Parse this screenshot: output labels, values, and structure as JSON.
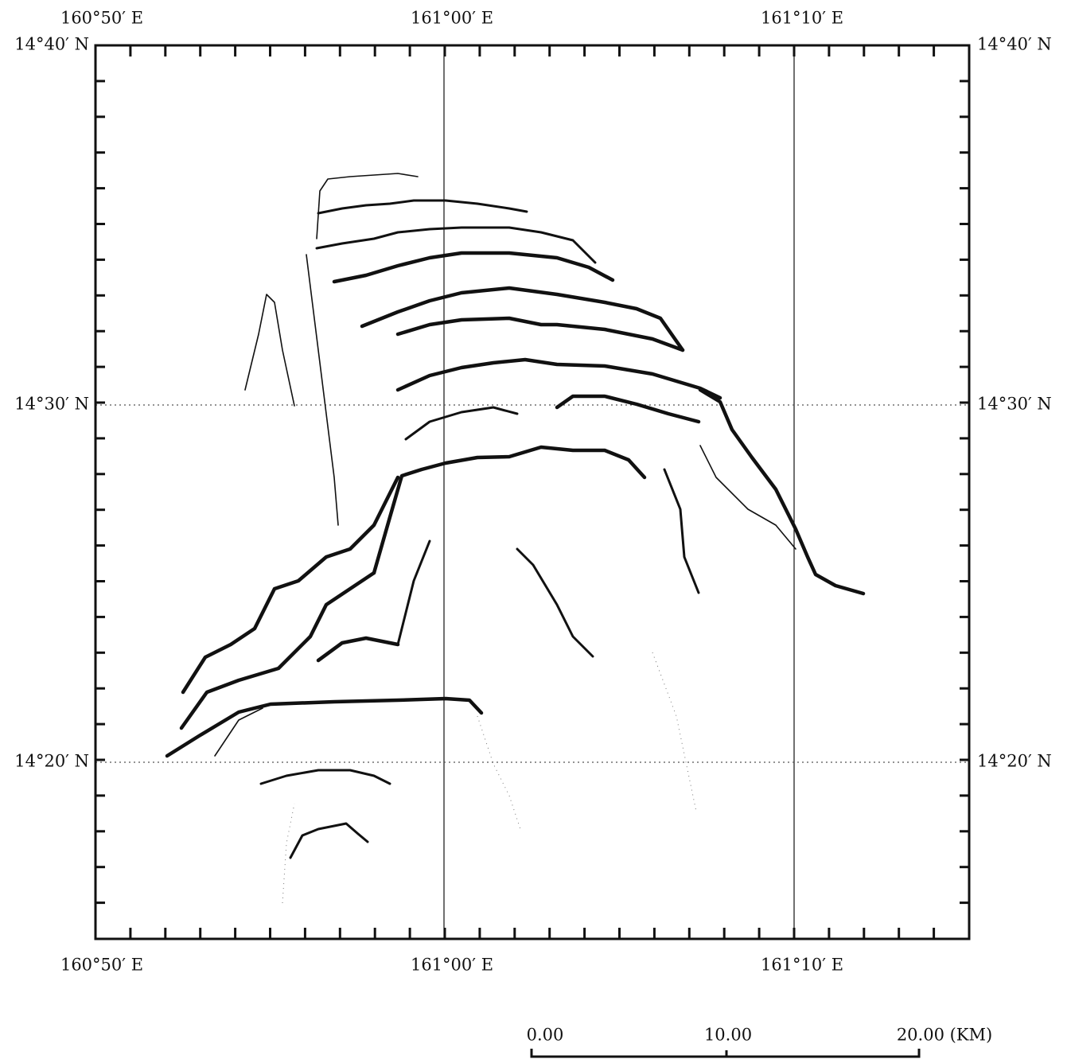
{
  "map": {
    "top_labels": [
      "160°50′ E",
      "161°00′ E",
      "161°10′ E"
    ],
    "bottom_labels": [
      "160°50′ E",
      "161°00′ E",
      "161°10′ E"
    ],
    "left_labels": [
      "14°40′ N",
      "14°30′ N",
      "14°20′ N"
    ],
    "right_labels": [
      "14°40′ N",
      "14°30′ N",
      "14°20′ N"
    ],
    "scale_bar": {
      "labels": [
        "0.00",
        "10.00",
        "20.00 (KM)"
      ]
    }
  }
}
